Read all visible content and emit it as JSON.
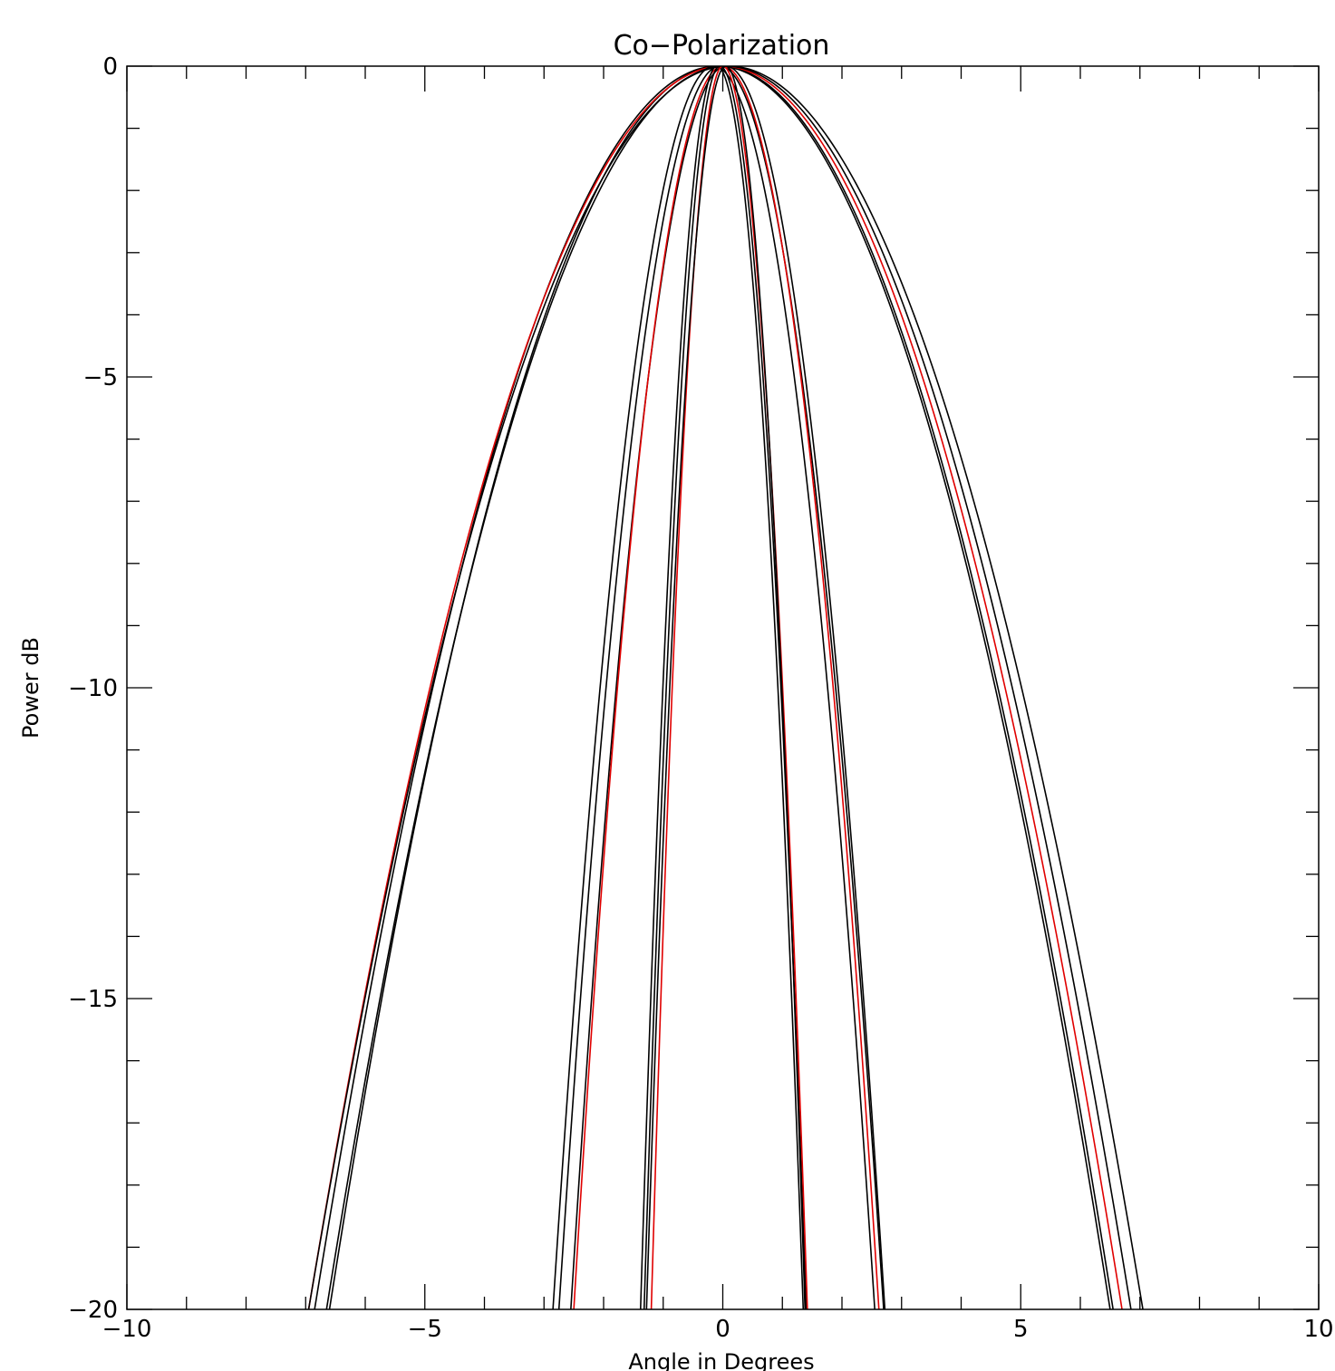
{
  "chart_data": {
    "type": "line",
    "title": "Co−Polarization",
    "xlabel": "Angle in Degrees",
    "ylabel": "Power dB",
    "xlim": [
      -10,
      10
    ],
    "ylim": [
      -20,
      0
    ],
    "x_ticks": [
      -10,
      -5,
      0,
      5,
      10
    ],
    "x_tick_labels": [
      "−10",
      "−5",
      "0",
      "5",
      "10"
    ],
    "y_ticks": [
      0,
      -5,
      -10,
      -15,
      -20
    ],
    "y_tick_labels": [
      "0",
      "−5",
      "−10",
      "−15",
      "−20"
    ],
    "grid": false,
    "legend": "none",
    "colors": {
      "black": "#000000",
      "red": "#e00000"
    },
    "series": [
      {
        "color": "black",
        "peak": -0.08,
        "left_at_minus20": -6.85,
        "right_at_minus20": 6.5
      },
      {
        "color": "black",
        "peak": -0.05,
        "left_at_minus20": -6.6,
        "right_at_minus20": 6.55
      },
      {
        "color": "red",
        "peak": 0.0,
        "left_at_minus20": -6.95,
        "right_at_minus20": 6.7
      },
      {
        "color": "black",
        "peak": 0.05,
        "left_at_minus20": -6.65,
        "right_at_minus20": 6.85
      },
      {
        "color": "black",
        "peak": 0.1,
        "left_at_minus20": -6.95,
        "right_at_minus20": 7.05
      },
      {
        "color": "black",
        "peak": -0.15,
        "left_at_minus20": -2.85,
        "right_at_minus20": 2.55
      },
      {
        "color": "black",
        "peak": -0.05,
        "left_at_minus20": -2.75,
        "right_at_minus20": 2.7
      },
      {
        "color": "black",
        "peak": 0.05,
        "left_at_minus20": -2.55,
        "right_at_minus20": 2.72
      },
      {
        "color": "red",
        "peak": 0.0,
        "left_at_minus20": -2.5,
        "right_at_minus20": 2.62
      },
      {
        "color": "black",
        "peak": -0.1,
        "left_at_minus20": -1.38,
        "right_at_minus20": 1.35
      },
      {
        "color": "black",
        "peak": -0.05,
        "left_at_minus20": -1.32,
        "right_at_minus20": 1.4
      },
      {
        "color": "red",
        "peak": 0.0,
        "left_at_minus20": -1.2,
        "right_at_minus20": 1.42
      },
      {
        "color": "black",
        "peak": 0.05,
        "left_at_minus20": -1.28,
        "right_at_minus20": 1.38
      }
    ]
  }
}
